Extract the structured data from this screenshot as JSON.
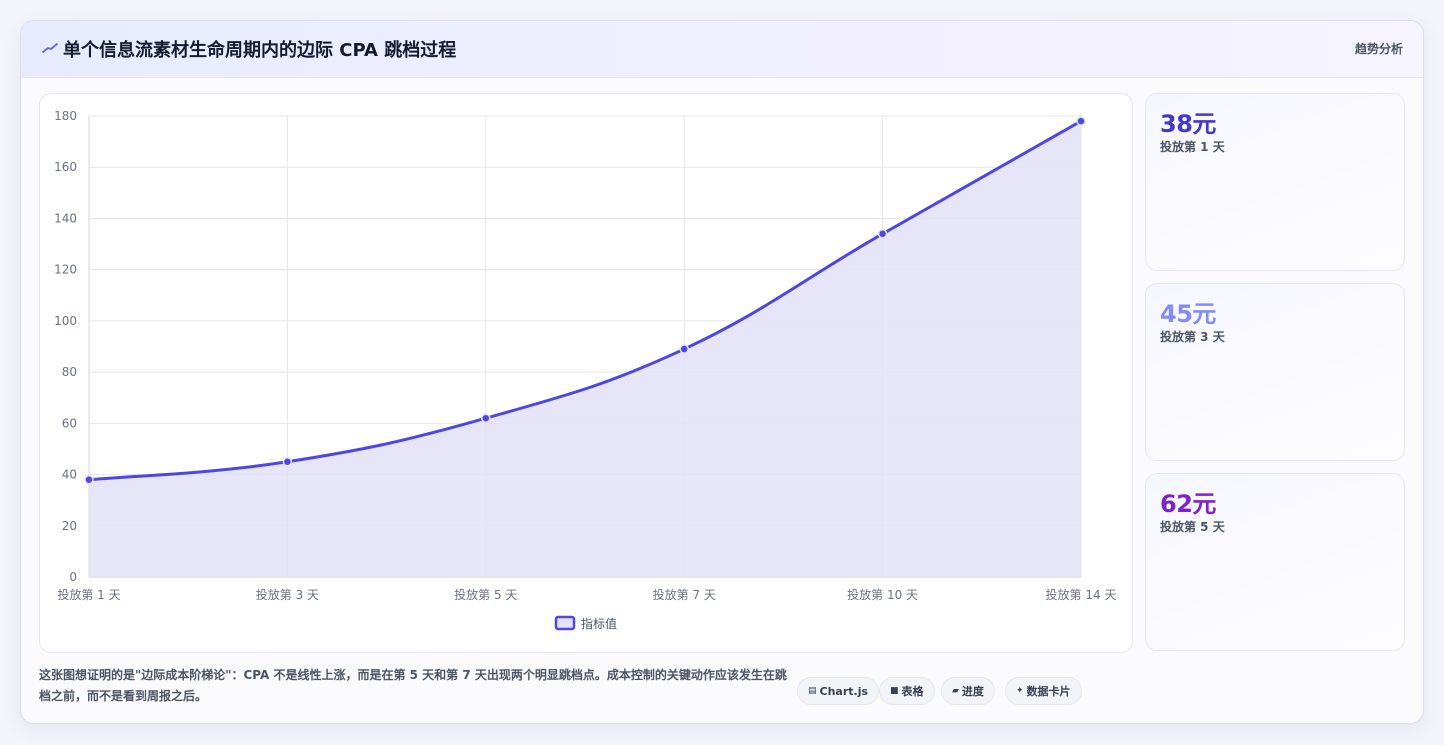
{
  "header": {
    "title": "单个信息流素材生命周期内的边际 CPA 跳档过程",
    "tag": "趋势分析",
    "icon": "trend-icon"
  },
  "chart_data": {
    "type": "area",
    "categories": [
      "投放第 1 天",
      "投放第 3 天",
      "投放第 5 天",
      "投放第 7 天",
      "投放第 10 天",
      "投放第 14 天"
    ],
    "series": [
      {
        "name": "指标值",
        "values": [
          38,
          45,
          62,
          89,
          134,
          178
        ]
      }
    ],
    "ylim": [
      0,
      180
    ],
    "yticks": [
      0,
      20,
      40,
      60,
      80,
      100,
      120,
      140,
      160,
      180
    ],
    "grid": true,
    "legend": "bottom-center",
    "colors": {
      "line": "#4f46e5",
      "fill": "#e3e2f8"
    }
  },
  "stats": [
    {
      "value": "38元",
      "label": "投放第 1 天",
      "color": "#4338ca"
    },
    {
      "value": "45元",
      "label": "投放第 3 天",
      "color": "#818cf8"
    },
    {
      "value": "62元",
      "label": "投放第 5 天",
      "color": "#7e22ce"
    }
  ],
  "footer": {
    "text": "这张图想证明的是\"边际成本阶梯论\"：CPA 不是线性上涨，而是在第 5 天和第 7 天出现两个明显跳档点。成本控制的关键动作应该发生在跳档之前，而不是看到周报之后。",
    "chips": [
      {
        "icon": "chart-icon",
        "glyph": "▤",
        "label": "Chart.js"
      },
      {
        "icon": "table-icon",
        "glyph": "■",
        "label": "表格"
      },
      {
        "icon": "progress-icon",
        "glyph": "▰",
        "label": "进度"
      },
      {
        "icon": "sparkle-icon",
        "glyph": "✦",
        "label": "数据卡片"
      }
    ]
  }
}
